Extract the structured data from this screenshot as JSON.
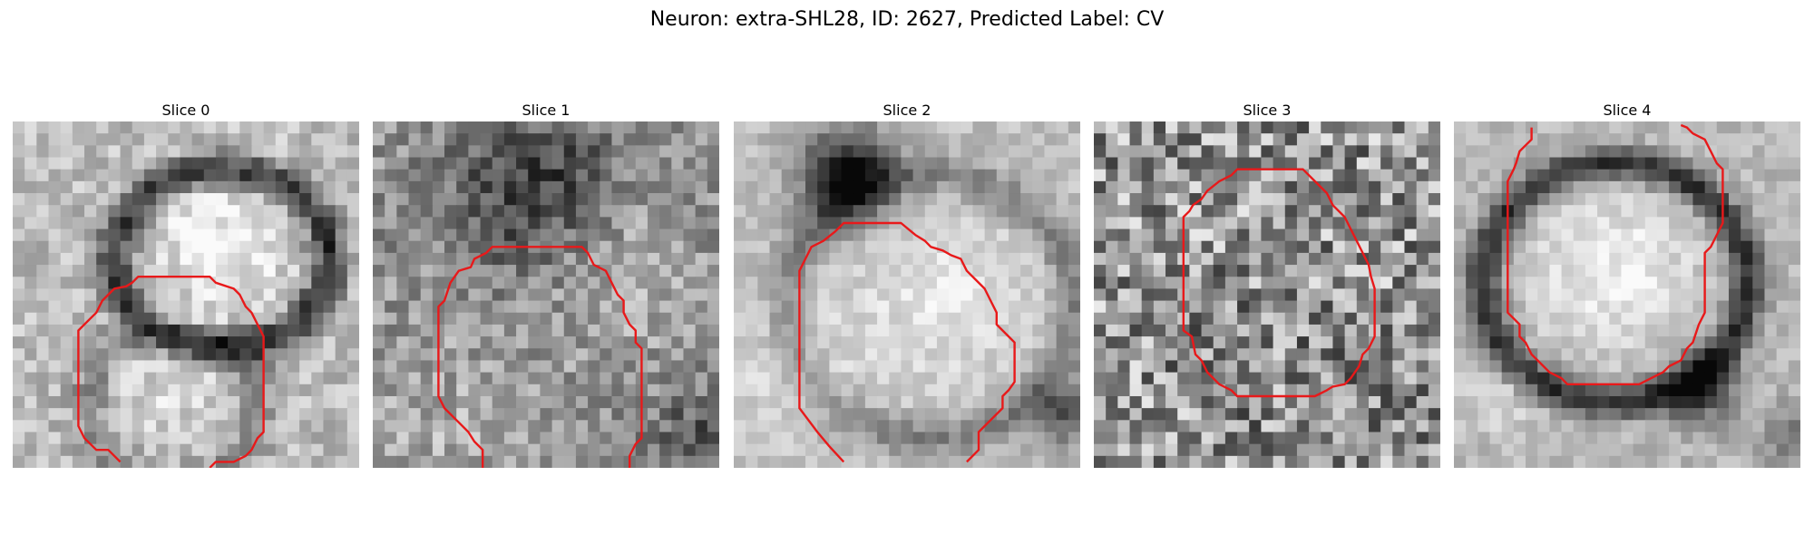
{
  "figure": {
    "title": "Neuron: extra-SHL28, ID: 2627, Predicted Label: CV",
    "contour_color": "#e8191a"
  },
  "panels": [
    {
      "title": "Slice 0",
      "image_content": "grayscale microscopy patch showing a bright round cell with a dark ring boundary; red outline contour traced around lower region"
    },
    {
      "title": "Slice 1",
      "image_content": "noisy grayscale microscopy patch with darker upper texture; red outline contour traced around center-lower region"
    },
    {
      "title": "Slice 2",
      "image_content": "grayscale microscopy patch with a bright oval cell body and dark upper-left blob; red outline contour traced around the bright cell"
    },
    {
      "title": "Slice 3",
      "image_content": "high-noise grayscale microscopy patch; red outline contour forming a rounded octagon in the center"
    },
    {
      "title": "Slice 4",
      "image_content": "grayscale microscopy patch with a large bright round cell and dark surrounding ring; red outline contour traced around the cell"
    }
  ]
}
